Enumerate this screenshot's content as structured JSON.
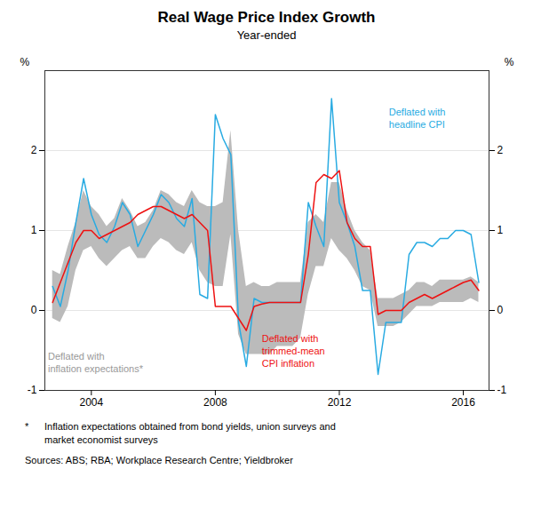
{
  "chart_data": {
    "type": "line",
    "title": "Real Wage Price Index Growth",
    "subtitle": "Year-ended",
    "ylabel": "%",
    "y2label": "%",
    "x": [
      2002.75,
      2003.0,
      2003.25,
      2003.5,
      2003.75,
      2004.0,
      2004.25,
      2004.5,
      2004.75,
      2005.0,
      2005.25,
      2005.5,
      2005.75,
      2006.0,
      2006.25,
      2006.5,
      2006.75,
      2007.0,
      2007.25,
      2007.5,
      2007.75,
      2008.0,
      2008.25,
      2008.5,
      2008.75,
      2009.0,
      2009.25,
      2009.5,
      2009.75,
      2010.0,
      2010.25,
      2010.5,
      2010.75,
      2011.0,
      2011.25,
      2011.5,
      2011.75,
      2012.0,
      2012.25,
      2012.5,
      2012.75,
      2013.0,
      2013.25,
      2013.5,
      2013.75,
      2014.0,
      2014.25,
      2014.5,
      2014.75,
      2015.0,
      2015.25,
      2015.5,
      2015.75,
      2016.0,
      2016.25,
      2016.5
    ],
    "series": [
      {
        "type": "area",
        "color": "#BBBBBB",
        "lower": [
          -0.1,
          -0.15,
          0.05,
          0.5,
          0.75,
          0.8,
          0.65,
          0.55,
          0.65,
          0.75,
          0.8,
          0.65,
          0.65,
          0.8,
          0.9,
          0.85,
          0.75,
          0.7,
          0.85,
          0.5,
          0.35,
          0.3,
          0.3,
          0.95,
          -0.3,
          -0.55,
          -0.55,
          -0.55,
          -0.55,
          -0.45,
          -0.45,
          -0.45,
          -0.35,
          0.2,
          0.55,
          0.55,
          0.9,
          0.75,
          0.65,
          0.5,
          0.3,
          0.25,
          -0.2,
          -0.2,
          -0.2,
          -0.15,
          -0.05,
          0.05,
          0.05,
          0.05,
          0.1,
          0.1,
          0.1,
          0.1,
          0.15,
          0.1
        ],
        "upper": [
          0.5,
          0.45,
          0.8,
          1.1,
          1.5,
          1.3,
          1.2,
          1.05,
          1.15,
          1.4,
          1.25,
          1.05,
          1.1,
          1.25,
          1.5,
          1.45,
          1.35,
          1.3,
          1.5,
          1.35,
          1.3,
          1.3,
          1.35,
          2.25,
          1.0,
          0.3,
          0.35,
          0.3,
          0.3,
          0.35,
          0.35,
          0.35,
          0.35,
          1.1,
          1.2,
          1.1,
          1.6,
          1.6,
          1.25,
          1.0,
          0.85,
          0.75,
          0.15,
          0.15,
          0.15,
          0.2,
          0.25,
          0.35,
          0.35,
          0.3,
          0.38,
          0.38,
          0.38,
          0.38,
          0.42,
          0.35
        ]
      },
      {
        "type": "line",
        "color": "#29ABE2",
        "values": [
          0.3,
          0.05,
          0.5,
          1.1,
          1.65,
          1.2,
          0.95,
          0.85,
          1.05,
          1.35,
          1.2,
          0.8,
          1.0,
          1.2,
          1.45,
          1.35,
          1.15,
          1.05,
          1.4,
          0.2,
          0.15,
          2.45,
          2.15,
          1.95,
          -0.15,
          -0.7,
          0.15,
          0.1,
          0.1,
          0.1,
          0.1,
          0.1,
          0.1,
          1.35,
          1.05,
          0.8,
          2.65,
          1.35,
          1.1,
          0.8,
          0.25,
          0.25,
          -0.8,
          -0.15,
          -0.15,
          -0.15,
          0.7,
          0.85,
          0.85,
          0.8,
          0.9,
          0.9,
          1.0,
          1.0,
          0.95,
          0.35
        ]
      },
      {
        "type": "line",
        "color": "#EE1111",
        "values": [
          0.1,
          0.35,
          0.6,
          0.85,
          1.0,
          1.0,
          0.9,
          0.95,
          1.0,
          1.05,
          1.1,
          1.2,
          1.25,
          1.3,
          1.3,
          1.25,
          1.2,
          1.15,
          1.2,
          1.1,
          1.0,
          0.05,
          0.05,
          0.05,
          -0.1,
          -0.25,
          0.05,
          0.08,
          0.1,
          0.1,
          0.1,
          0.1,
          0.1,
          0.7,
          1.6,
          1.7,
          1.65,
          1.75,
          1.1,
          0.9,
          0.8,
          0.8,
          -0.05,
          0.0,
          0.0,
          0.0,
          0.1,
          0.15,
          0.2,
          0.15,
          0.2,
          0.25,
          0.3,
          0.35,
          0.38,
          0.25
        ]
      }
    ],
    "annotations": [
      {
        "text": "Deflated with\nheadline CPI",
        "x": 2013.6,
        "y": 2.55,
        "color": "#29ABE2"
      },
      {
        "text": "Deflated with\ntrimmed-mean\nCPI inflation",
        "x": 2009.5,
        "y": -0.28,
        "color": "#EE1111"
      },
      {
        "text": "Deflated with\ninflation expectations*",
        "x": 2002.6,
        "y": -0.5,
        "color": "#999999"
      }
    ],
    "footnote_marker": "*",
    "footnote": "Inflation expectations obtained from bond yields, union surveys and\nmarket economist surveys",
    "source": "Sources: ABS; RBA; Workplace Research Centre; Yieldbroker",
    "xlim": [
      2002.5,
      2016.83
    ],
    "xticks": [
      2004,
      2008,
      2012,
      2016
    ],
    "ylim": [
      -1,
      3
    ],
    "yticks": [
      -1,
      0,
      1,
      2
    ],
    "y2lim": [
      -1,
      3
    ],
    "y2ticks": [
      -1,
      0,
      1,
      2
    ],
    "grid": true
  }
}
